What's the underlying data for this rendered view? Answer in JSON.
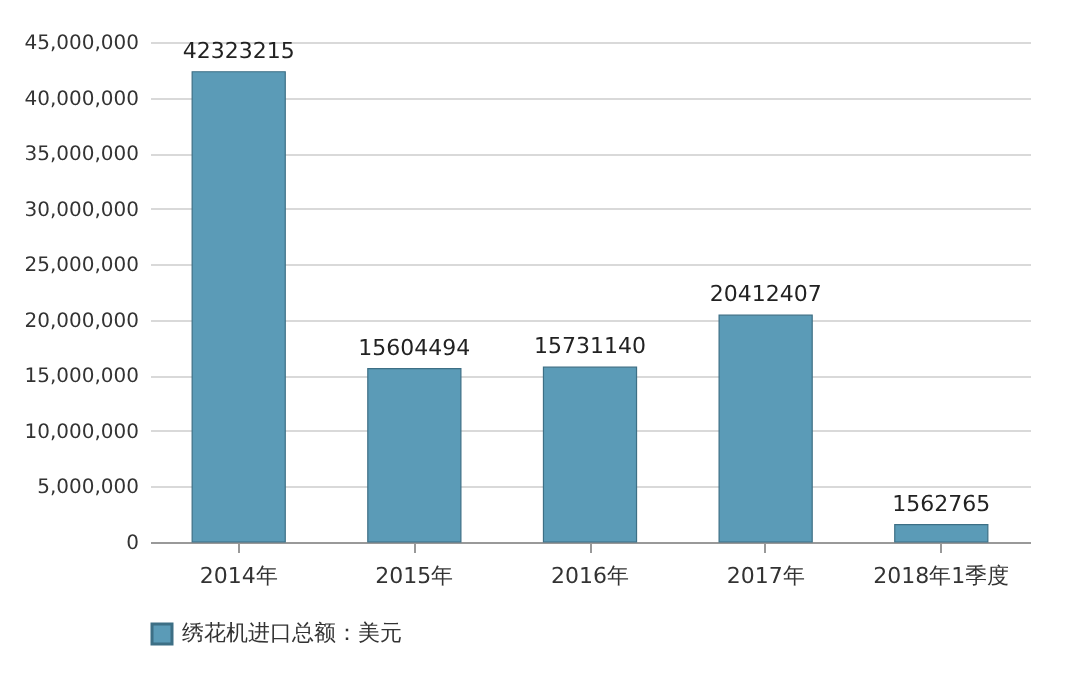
{
  "chart_data": {
    "type": "bar",
    "categories": [
      "2014年",
      "2015年",
      "2016年",
      "2017年",
      "2018年1季度"
    ],
    "series": [
      {
        "name": "绣花机进口总额：美元",
        "color": "#5b9bb7",
        "values": [
          42323215,
          15604494,
          15731140,
          20412407,
          1562765
        ]
      }
    ],
    "ylim": [
      0,
      45000000
    ],
    "yticks": [
      0,
      {
        "value": 5000000,
        "label": "5,000,000"
      },
      {
        "value": 10000000,
        "label": "10,000,000"
      },
      {
        "value": 15000000,
        "label": "15,000,000"
      },
      {
        "value": 20000000,
        "label": "20,000,000"
      },
      {
        "value": 25000000,
        "label": "25,000,000"
      },
      {
        "value": 30000000,
        "label": "30,000,000"
      },
      {
        "value": 35000000,
        "label": "35,000,000"
      },
      {
        "value": 40000000,
        "label": "40,000,000"
      },
      {
        "value": 45000000,
        "label": "45,000,000"
      }
    ],
    "grid": "y",
    "legend": "bottom",
    "data_labels": true
  }
}
